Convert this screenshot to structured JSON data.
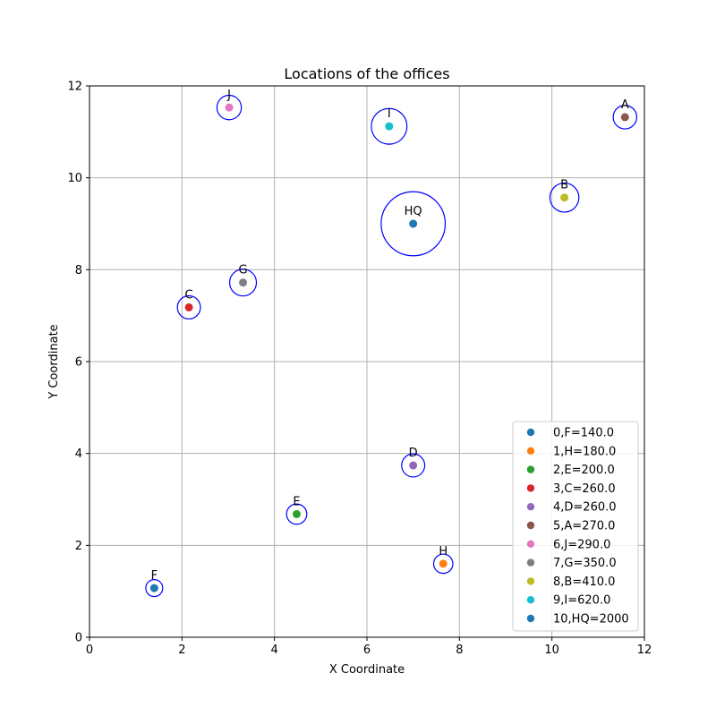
{
  "chart_data": {
    "type": "scatter",
    "title": "Locations of the offices",
    "xlabel": "X Coordinate",
    "ylabel": "Y Coordinate",
    "xlim": [
      0,
      12
    ],
    "ylim": [
      0,
      12
    ],
    "xticks": [
      "0",
      "2",
      "4",
      "6",
      "8",
      "10",
      "12"
    ],
    "yticks": [
      "0",
      "2",
      "4",
      "6",
      "8",
      "10",
      "12"
    ],
    "grid": true,
    "legend_position": "lower-right",
    "ring_color": "#0000ff",
    "points": [
      {
        "label": "F",
        "legend": "0,F=140.0",
        "x": 1.4,
        "y": 1.07,
        "size": 140,
        "color": "#1f77b4"
      },
      {
        "label": "H",
        "legend": "1,H=180.0",
        "x": 7.65,
        "y": 1.6,
        "size": 180,
        "color": "#ff7f0e"
      },
      {
        "label": "E",
        "legend": "2,E=200.0",
        "x": 4.48,
        "y": 2.68,
        "size": 200,
        "color": "#2ca02c"
      },
      {
        "label": "C",
        "legend": "3,C=260.0",
        "x": 2.15,
        "y": 7.18,
        "size": 260,
        "color": "#d62728"
      },
      {
        "label": "D",
        "legend": "4,D=260.0",
        "x": 7.0,
        "y": 3.74,
        "size": 260,
        "color": "#9467bd"
      },
      {
        "label": "A",
        "legend": "5,A=270.0",
        "x": 11.58,
        "y": 11.32,
        "size": 270,
        "color": "#8c564b"
      },
      {
        "label": "J",
        "legend": "6,J=290.0",
        "x": 3.02,
        "y": 11.53,
        "size": 290,
        "color": "#e377c2"
      },
      {
        "label": "G",
        "legend": "7,G=350.0",
        "x": 3.32,
        "y": 7.72,
        "size": 350,
        "color": "#7f7f7f"
      },
      {
        "label": "B",
        "legend": "8,B=410.0",
        "x": 10.27,
        "y": 9.57,
        "size": 410,
        "color": "#bcbd22"
      },
      {
        "label": "I",
        "legend": "9,I=620.0",
        "x": 6.48,
        "y": 11.12,
        "size": 620,
        "color": "#17becf"
      },
      {
        "label": "HQ",
        "legend": "10,HQ=2000",
        "x": 7.0,
        "y": 9.0,
        "size": 2000,
        "color": "#1f77b4"
      }
    ]
  }
}
